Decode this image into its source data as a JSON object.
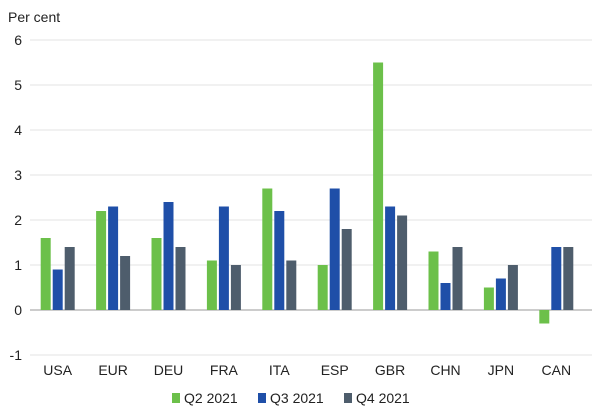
{
  "chart_data": {
    "type": "bar",
    "ylabel": "Per cent",
    "ylim": [
      -1,
      6
    ],
    "yticks": [
      -1,
      0,
      1,
      2,
      3,
      4,
      5,
      6
    ],
    "grid": true,
    "legend_placement": "bottom-center",
    "categories": [
      "USA",
      "EUR",
      "DEU",
      "FRA",
      "ITA",
      "ESP",
      "GBR",
      "CHN",
      "JPN",
      "CAN"
    ],
    "series": [
      {
        "name": "Q2 2021",
        "color": "#6cc04a",
        "values": [
          1.6,
          2.2,
          1.6,
          1.1,
          2.7,
          1.0,
          5.5,
          1.3,
          0.5,
          -0.3
        ]
      },
      {
        "name": "Q3 2021",
        "color": "#1f4fa8",
        "values": [
          0.9,
          2.3,
          2.4,
          2.3,
          2.2,
          2.7,
          2.3,
          0.6,
          0.7,
          1.4
        ]
      },
      {
        "name": "Q4 2021",
        "color": "#4e5d6c",
        "values": [
          1.4,
          1.2,
          1.4,
          1.0,
          1.1,
          1.8,
          2.1,
          1.4,
          1.0,
          1.4
        ]
      }
    ]
  }
}
